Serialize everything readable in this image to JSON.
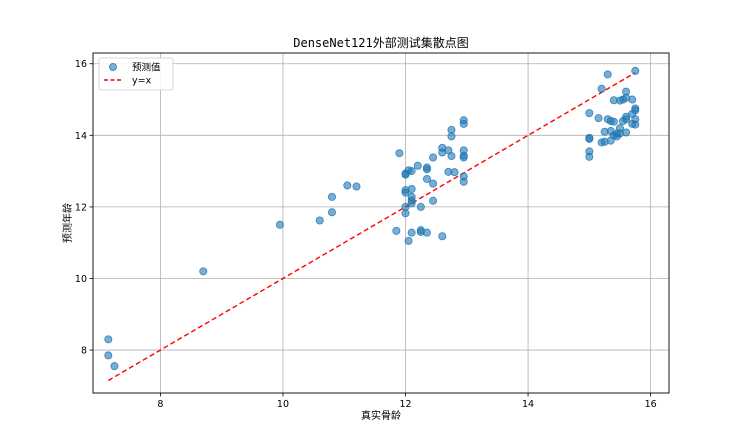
{
  "chart_data": {
    "type": "scatter",
    "title": "DenseNet121外部测试集散点图",
    "xlabel": "真实骨龄",
    "ylabel": "预测年龄",
    "xlim": [
      6.9,
      16.3
    ],
    "ylim": [
      6.8,
      16.3
    ],
    "xticks": [
      8,
      10,
      12,
      14,
      16
    ],
    "yticks": [
      8,
      10,
      12,
      14,
      16
    ],
    "grid": true,
    "legend_position": "top-left",
    "series": [
      {
        "name": "预测值",
        "kind": "scatter",
        "color": "#1f77b4",
        "points": [
          [
            7.15,
            8.3
          ],
          [
            7.15,
            7.85
          ],
          [
            7.25,
            7.55
          ],
          [
            8.7,
            10.2
          ],
          [
            9.95,
            11.5
          ],
          [
            10.6,
            11.62
          ],
          [
            10.8,
            11.85
          ],
          [
            10.8,
            12.28
          ],
          [
            11.05,
            12.6
          ],
          [
            11.2,
            12.57
          ],
          [
            11.85,
            11.33
          ],
          [
            11.9,
            13.5
          ],
          [
            12.0,
            11.82
          ],
          [
            12.0,
            12.0
          ],
          [
            12.0,
            12.4
          ],
          [
            12.0,
            12.47
          ],
          [
            12.0,
            12.9
          ],
          [
            12.0,
            12.93
          ],
          [
            12.05,
            11.05
          ],
          [
            12.05,
            13.02
          ],
          [
            12.1,
            11.28
          ],
          [
            12.1,
            12.1
          ],
          [
            12.1,
            12.18
          ],
          [
            12.1,
            12.28
          ],
          [
            12.1,
            12.5
          ],
          [
            12.1,
            13.0
          ],
          [
            12.2,
            13.15
          ],
          [
            12.25,
            12.0
          ],
          [
            12.25,
            11.3
          ],
          [
            12.25,
            11.35
          ],
          [
            12.35,
            11.28
          ],
          [
            12.35,
            12.78
          ],
          [
            12.35,
            13.05
          ],
          [
            12.35,
            13.1
          ],
          [
            12.45,
            12.17
          ],
          [
            12.45,
            12.65
          ],
          [
            12.45,
            13.38
          ],
          [
            12.6,
            11.18
          ],
          [
            12.6,
            13.52
          ],
          [
            12.6,
            13.65
          ],
          [
            12.7,
            12.98
          ],
          [
            12.7,
            13.58
          ],
          [
            12.75,
            13.42
          ],
          [
            12.75,
            13.97
          ],
          [
            12.75,
            14.15
          ],
          [
            12.8,
            12.97
          ],
          [
            12.95,
            12.7
          ],
          [
            12.95,
            12.85
          ],
          [
            12.95,
            13.38
          ],
          [
            12.95,
            13.43
          ],
          [
            12.95,
            13.58
          ],
          [
            12.95,
            14.32
          ],
          [
            12.95,
            14.42
          ],
          [
            15.0,
            13.4
          ],
          [
            15.0,
            13.55
          ],
          [
            15.0,
            13.9
          ],
          [
            15.0,
            13.93
          ],
          [
            15.0,
            14.62
          ],
          [
            15.15,
            14.48
          ],
          [
            15.2,
            13.8
          ],
          [
            15.2,
            15.3
          ],
          [
            15.25,
            13.82
          ],
          [
            15.25,
            14.1
          ],
          [
            15.3,
            14.45
          ],
          [
            15.3,
            15.7
          ],
          [
            15.35,
            13.85
          ],
          [
            15.35,
            14.12
          ],
          [
            15.35,
            14.4
          ],
          [
            15.4,
            14.0
          ],
          [
            15.4,
            14.38
          ],
          [
            15.4,
            14.98
          ],
          [
            15.45,
            13.97
          ],
          [
            15.45,
            14.05
          ],
          [
            15.5,
            14.05
          ],
          [
            15.5,
            14.2
          ],
          [
            15.5,
            14.97
          ],
          [
            15.55,
            14.4
          ],
          [
            15.55,
            15.0
          ],
          [
            15.6,
            14.08
          ],
          [
            15.6,
            14.45
          ],
          [
            15.6,
            14.52
          ],
          [
            15.6,
            15.05
          ],
          [
            15.6,
            15.22
          ],
          [
            15.7,
            14.32
          ],
          [
            15.7,
            14.6
          ],
          [
            15.7,
            15.0
          ],
          [
            15.75,
            14.3
          ],
          [
            15.75,
            14.45
          ],
          [
            15.75,
            14.7
          ],
          [
            15.75,
            14.75
          ],
          [
            15.75,
            15.8
          ]
        ]
      },
      {
        "name": "y=x",
        "kind": "line",
        "color": "#ff0000",
        "dash": "dashed",
        "points": [
          [
            7.15,
            7.15
          ],
          [
            15.75,
            15.75
          ]
        ]
      }
    ]
  }
}
